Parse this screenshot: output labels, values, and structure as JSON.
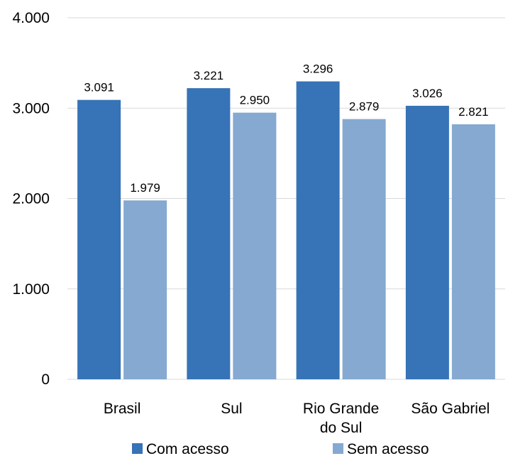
{
  "chart_data": {
    "type": "bar",
    "categories": [
      [
        "Brasil"
      ],
      [
        "Sul"
      ],
      [
        "Rio Grande",
        "do Sul"
      ],
      [
        "São Gabriel"
      ]
    ],
    "series": [
      {
        "name": "Com acesso",
        "color": "#3673b7",
        "values": [
          3091,
          3221,
          3296,
          3026
        ],
        "labels": [
          "3.091",
          "3.221",
          "3.296",
          "3.026"
        ]
      },
      {
        "name": "Sem acesso",
        "color": "#85a9d0",
        "values": [
          1979,
          2950,
          2879,
          2821
        ],
        "labels": [
          "1.979",
          "2.950",
          "2.879",
          "2.821"
        ]
      }
    ],
    "yticks": [
      0,
      1000,
      2000,
      3000,
      4000
    ],
    "ytick_labels": [
      "0",
      "1.000",
      "2.000",
      "3.000",
      "4.000"
    ],
    "ylim": [
      0,
      4000
    ],
    "grid": true,
    "legend_position": "bottom",
    "gridline_color": "#d9d9d9"
  }
}
